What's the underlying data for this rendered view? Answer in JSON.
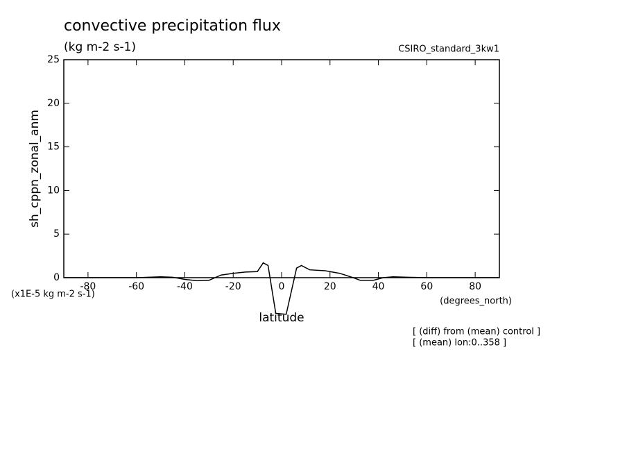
{
  "chart_data": {
    "type": "line",
    "title": "convective precipitation flux",
    "subtitle": "(kg m-2 s-1)",
    "dataset": "CSIRO_standard_3kw1",
    "y_label": "sh_cppn_zonal_anm",
    "y_units": "(x1E-5 kg m-2 s-1)",
    "x_units": "(degrees_north)",
    "x_label": "latitude",
    "notes": [
      "[ (diff) from (mean) control ]",
      "[ (mean) lon:0..358 ]"
    ],
    "xlim": [
      -90,
      90
    ],
    "ylim": [
      0,
      25
    ],
    "xticks": [
      -80,
      -60,
      -40,
      -20,
      0,
      20,
      40,
      60,
      80
    ],
    "yticks": [
      0,
      5,
      10,
      15,
      20,
      25
    ],
    "color": "#000000",
    "x": [
      -90,
      -80,
      -60,
      -50,
      -45,
      -40,
      -35,
      -30,
      -25,
      -20,
      -15,
      -10,
      -7.6,
      -5.6,
      -2.4,
      1.9,
      6.2,
      8.2,
      11.6,
      18,
      24,
      29.6,
      32.5,
      38,
      42,
      46,
      52,
      61,
      90
    ],
    "values": [
      0,
      0,
      0,
      0.1,
      0.05,
      -0.2,
      -0.35,
      -0.3,
      0.3,
      0.5,
      0.65,
      0.7,
      1.7,
      1.4,
      -4.1,
      -4.2,
      1.1,
      1.4,
      0.9,
      0.8,
      0.5,
      0,
      -0.3,
      -0.3,
      0,
      0.1,
      0.05,
      0,
      0
    ]
  }
}
